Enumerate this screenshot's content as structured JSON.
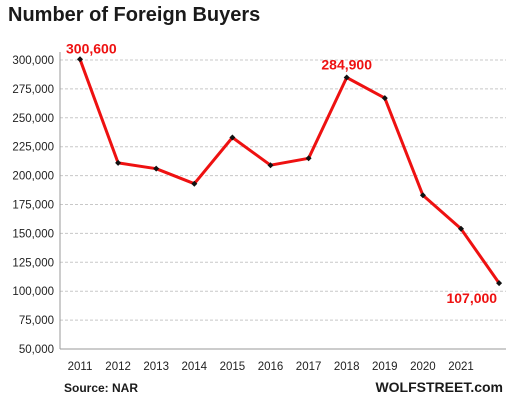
{
  "chart_data": {
    "type": "line",
    "title": "Number of Foreign Buyers",
    "categories": [
      "2011",
      "2012",
      "2013",
      "2014",
      "2015",
      "2016",
      "2017",
      "2018",
      "2019",
      "2020",
      "2021",
      ""
    ],
    "series": [
      {
        "values": [
          300600,
          211000,
          206000,
          193000,
          233000,
          209000,
          215000,
          284900,
          267000,
          183000,
          154000,
          107000
        ]
      }
    ],
    "ylim": [
      50000,
      300000
    ],
    "yticks": [
      300000,
      275000,
      250000,
      225000,
      200000,
      175000,
      150000,
      125000,
      100000,
      75000,
      50000
    ],
    "ytick_labels": [
      "300,000",
      "275,000",
      "250,000",
      "225,000",
      "200,000",
      "175,000",
      "150,000",
      "125,000",
      "100,000",
      "75,000",
      "50,000"
    ],
    "annotations": [
      {
        "index": 0,
        "text": "300,600"
      },
      {
        "index": 7,
        "text": "284,900"
      },
      {
        "index": 11,
        "text": "107,000"
      }
    ],
    "grid": true,
    "line_color": "#ee1111",
    "marker_color": "#111111",
    "source": "Source: NAR",
    "brand": "WOLFSTREET.com"
  }
}
